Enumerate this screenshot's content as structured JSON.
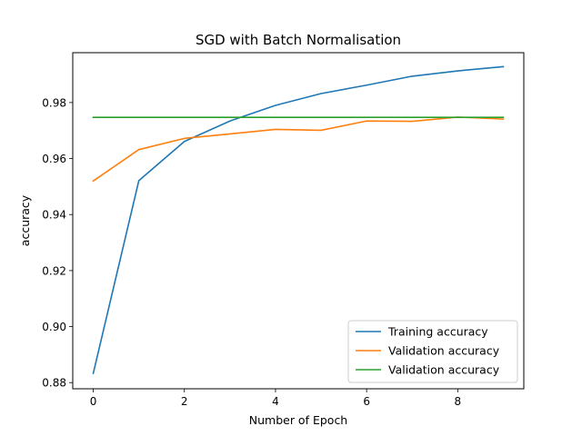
{
  "chart_data": {
    "type": "line",
    "title": "SGD with Batch Normalisation",
    "xlabel": "Number of Epoch",
    "ylabel": "accuracy",
    "x": [
      0,
      1,
      2,
      3,
      4,
      5,
      6,
      7,
      8,
      9
    ],
    "xlim": [
      -0.45,
      9.45
    ],
    "ylim": [
      0.8778,
      0.9978
    ],
    "xticks": [
      0,
      2,
      4,
      6,
      8
    ],
    "yticks": [
      0.88,
      0.9,
      0.92,
      0.94,
      0.96,
      0.98
    ],
    "ytick_labels": [
      "0.88",
      "0.90",
      "0.92",
      "0.94",
      "0.96",
      "0.98"
    ],
    "grid": false,
    "legend_position": "lower-right",
    "series": [
      {
        "name": "Training accuracy",
        "color": "#1f77b4",
        "values": [
          0.8833,
          0.9521,
          0.9661,
          0.9734,
          0.979,
          0.9832,
          0.9862,
          0.9894,
          0.9913,
          0.9928
        ]
      },
      {
        "name": "Validation accuracy",
        "color": "#ff7f0e",
        "values": [
          0.952,
          0.9632,
          0.9672,
          0.9688,
          0.9704,
          0.9701,
          0.9734,
          0.9733,
          0.9748,
          0.9741
        ]
      },
      {
        "name": "Validation accuracy",
        "color": "#2ca02c",
        "values": [
          0.9747,
          0.9747,
          0.9747,
          0.9747,
          0.9747,
          0.9747,
          0.9747,
          0.9747,
          0.9747,
          0.9747
        ]
      }
    ]
  }
}
